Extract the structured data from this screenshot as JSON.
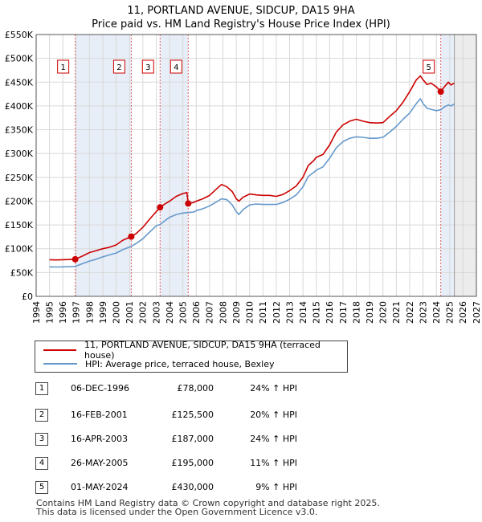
{
  "chart_data": {
    "type": "line",
    "title": "11, PORTLAND AVENUE, SIDCUP, DA15 9HA",
    "subtitle": "Price paid vs. HM Land Registry's House Price Index (HPI)",
    "xlim": [
      1994,
      2027
    ],
    "ylim": [
      0,
      550000
    ],
    "x_ticks": [
      1994,
      1995,
      1996,
      1997,
      1998,
      1999,
      2000,
      2001,
      2002,
      2003,
      2004,
      2005,
      2006,
      2007,
      2008,
      2009,
      2010,
      2011,
      2012,
      2013,
      2014,
      2015,
      2016,
      2017,
      2018,
      2019,
      2020,
      2021,
      2022,
      2023,
      2024,
      2025,
      2026,
      2027
    ],
    "y_ticks": [
      0,
      50000,
      100000,
      150000,
      200000,
      250000,
      300000,
      350000,
      400000,
      450000,
      500000,
      550000
    ],
    "y_tick_labels": [
      "£0",
      "£50K",
      "£100K",
      "£150K",
      "£200K",
      "£250K",
      "£300K",
      "£350K",
      "£400K",
      "£450K",
      "£500K",
      "£550K"
    ],
    "grid": true,
    "data_end": 2025.35,
    "shaded_spans": [
      [
        1996.93,
        2001.13
      ],
      [
        2003.29,
        2005.4
      ],
      [
        2024.33,
        2025.35
      ]
    ],
    "series": [
      {
        "name": "11, PORTLAND AVENUE, SIDCUP, DA15 9HA (terraced house)",
        "color": "#cc0000",
        "points": [
          [
            1995.0,
            77000
          ],
          [
            1995.5,
            76500
          ],
          [
            1996.0,
            77000
          ],
          [
            1996.5,
            77500
          ],
          [
            1996.93,
            78000
          ],
          [
            1997.5,
            85000
          ],
          [
            1998.0,
            92000
          ],
          [
            1998.5,
            96000
          ],
          [
            1999.0,
            100000
          ],
          [
            1999.5,
            103000
          ],
          [
            2000.0,
            108000
          ],
          [
            2000.5,
            118000
          ],
          [
            2001.13,
            125500
          ],
          [
            2001.5,
            132000
          ],
          [
            2002.0,
            145000
          ],
          [
            2002.5,
            162000
          ],
          [
            2003.0,
            178000
          ],
          [
            2003.29,
            187000
          ],
          [
            2003.7,
            195000
          ],
          [
            2004.0,
            200000
          ],
          [
            2004.5,
            210000
          ],
          [
            2005.0,
            216000
          ],
          [
            2005.3,
            218000
          ],
          [
            2005.4,
            195000
          ],
          [
            2005.8,
            197000
          ],
          [
            2006.0,
            200000
          ],
          [
            2006.5,
            205000
          ],
          [
            2007.0,
            212000
          ],
          [
            2007.5,
            225000
          ],
          [
            2007.9,
            235000
          ],
          [
            2008.3,
            230000
          ],
          [
            2008.7,
            220000
          ],
          [
            2009.0,
            205000
          ],
          [
            2009.2,
            200000
          ],
          [
            2009.5,
            208000
          ],
          [
            2010.0,
            215000
          ],
          [
            2010.5,
            213000
          ],
          [
            2011.0,
            212000
          ],
          [
            2011.5,
            212000
          ],
          [
            2012.0,
            210000
          ],
          [
            2012.5,
            214000
          ],
          [
            2013.0,
            222000
          ],
          [
            2013.5,
            232000
          ],
          [
            2014.0,
            250000
          ],
          [
            2014.4,
            275000
          ],
          [
            2014.8,
            285000
          ],
          [
            2015.0,
            292000
          ],
          [
            2015.5,
            298000
          ],
          [
            2016.0,
            318000
          ],
          [
            2016.5,
            345000
          ],
          [
            2017.0,
            360000
          ],
          [
            2017.5,
            368000
          ],
          [
            2018.0,
            372000
          ],
          [
            2018.5,
            368000
          ],
          [
            2019.0,
            365000
          ],
          [
            2019.5,
            364000
          ],
          [
            2020.0,
            365000
          ],
          [
            2020.5,
            378000
          ],
          [
            2021.0,
            390000
          ],
          [
            2021.5,
            408000
          ],
          [
            2022.0,
            430000
          ],
          [
            2022.5,
            455000
          ],
          [
            2022.8,
            463000
          ],
          [
            2023.0,
            455000
          ],
          [
            2023.3,
            445000
          ],
          [
            2023.6,
            448000
          ],
          [
            2024.0,
            440000
          ],
          [
            2024.33,
            430000
          ],
          [
            2024.6,
            440000
          ],
          [
            2024.9,
            450000
          ],
          [
            2025.1,
            444000
          ],
          [
            2025.35,
            448000
          ]
        ]
      },
      {
        "name": "HPI: Average price, terraced house, Bexley",
        "color": "#6699cc",
        "points": [
          [
            1995.0,
            62000
          ],
          [
            1995.5,
            61500
          ],
          [
            1996.0,
            62000
          ],
          [
            1996.5,
            62500
          ],
          [
            1996.93,
            63000
          ],
          [
            1997.5,
            69000
          ],
          [
            1998.0,
            74000
          ],
          [
            1998.5,
            78000
          ],
          [
            1999.0,
            83000
          ],
          [
            1999.5,
            87000
          ],
          [
            2000.0,
            91000
          ],
          [
            2000.5,
            98000
          ],
          [
            2001.13,
            105000
          ],
          [
            2001.5,
            111000
          ],
          [
            2002.0,
            121000
          ],
          [
            2002.5,
            135000
          ],
          [
            2003.0,
            148000
          ],
          [
            2003.29,
            151000
          ],
          [
            2003.7,
            160000
          ],
          [
            2004.0,
            166000
          ],
          [
            2004.5,
            172000
          ],
          [
            2005.0,
            175000
          ],
          [
            2005.4,
            176000
          ],
          [
            2005.8,
            177000
          ],
          [
            2006.0,
            180000
          ],
          [
            2006.5,
            184000
          ],
          [
            2007.0,
            190000
          ],
          [
            2007.5,
            198000
          ],
          [
            2007.9,
            205000
          ],
          [
            2008.3,
            203000
          ],
          [
            2008.7,
            192000
          ],
          [
            2009.0,
            178000
          ],
          [
            2009.2,
            172000
          ],
          [
            2009.5,
            182000
          ],
          [
            2010.0,
            192000
          ],
          [
            2010.5,
            194000
          ],
          [
            2011.0,
            193000
          ],
          [
            2011.5,
            193000
          ],
          [
            2012.0,
            193000
          ],
          [
            2012.5,
            197000
          ],
          [
            2013.0,
            204000
          ],
          [
            2013.5,
            213000
          ],
          [
            2014.0,
            230000
          ],
          [
            2014.4,
            252000
          ],
          [
            2014.8,
            260000
          ],
          [
            2015.0,
            265000
          ],
          [
            2015.5,
            272000
          ],
          [
            2016.0,
            290000
          ],
          [
            2016.5,
            312000
          ],
          [
            2017.0,
            325000
          ],
          [
            2017.5,
            332000
          ],
          [
            2018.0,
            335000
          ],
          [
            2018.5,
            334000
          ],
          [
            2019.0,
            332000
          ],
          [
            2019.5,
            332000
          ],
          [
            2020.0,
            334000
          ],
          [
            2020.5,
            345000
          ],
          [
            2021.0,
            357000
          ],
          [
            2021.5,
            372000
          ],
          [
            2022.0,
            385000
          ],
          [
            2022.5,
            405000
          ],
          [
            2022.8,
            415000
          ],
          [
            2023.0,
            405000
          ],
          [
            2023.3,
            395000
          ],
          [
            2023.6,
            393000
          ],
          [
            2024.0,
            390000
          ],
          [
            2024.33,
            392000
          ],
          [
            2024.6,
            398000
          ],
          [
            2024.9,
            402000
          ],
          [
            2025.1,
            400000
          ],
          [
            2025.35,
            404000
          ]
        ]
      }
    ],
    "sales": [
      {
        "id": "1",
        "x": 1996.93,
        "price": 78000,
        "date": "06-DEC-1996",
        "price_label": "£78,000",
        "hpi": "24% ↑ HPI"
      },
      {
        "id": "2",
        "x": 2001.13,
        "price": 125500,
        "date": "16-FEB-2001",
        "price_label": "£125,500",
        "hpi": "20% ↑ HPI"
      },
      {
        "id": "3",
        "x": 2003.29,
        "price": 187000,
        "date": "16-APR-2003",
        "price_label": "£187,000",
        "hpi": "24% ↑ HPI"
      },
      {
        "id": "4",
        "x": 2005.4,
        "price": 195000,
        "date": "26-MAY-2005",
        "price_label": "£195,000",
        "hpi": "11% ↑ HPI"
      },
      {
        "id": "5",
        "x": 2024.33,
        "price": 430000,
        "date": "01-MAY-2024",
        "price_label": "£430,000",
        "hpi": "9% ↑ HPI"
      }
    ]
  },
  "legend": {
    "property_label": "11, PORTLAND AVENUE, SIDCUP, DA15 9HA (terraced house)",
    "hpi_label": "HPI: Average price, terraced house, Bexley"
  },
  "footer": {
    "line1": "Contains HM Land Registry data © Crown copyright and database right 2025.",
    "line2": "This data is licensed under the Open Government Licence v3.0."
  }
}
